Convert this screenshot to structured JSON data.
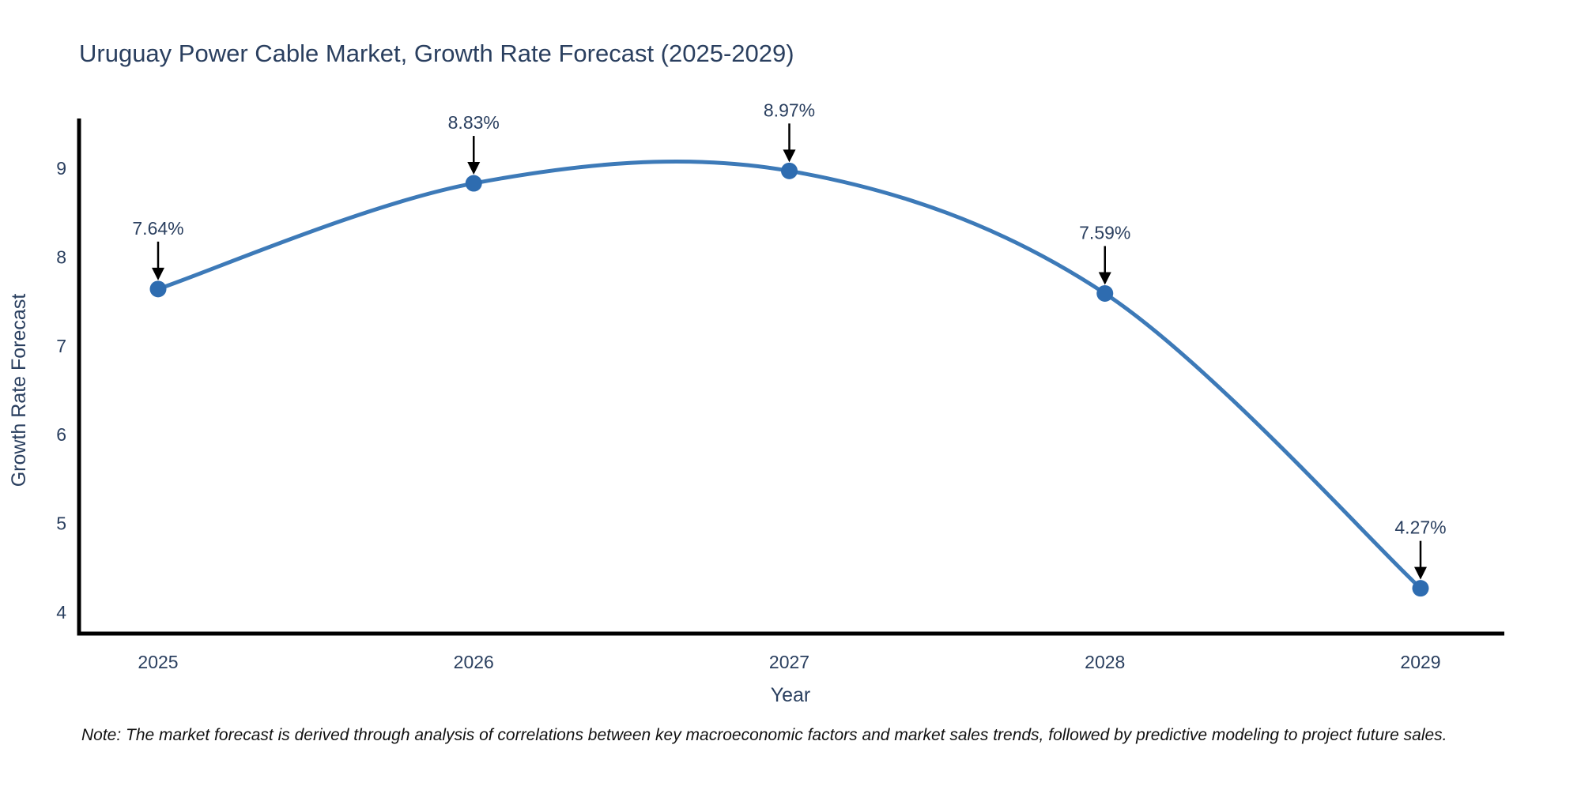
{
  "title": "Uruguay Power Cable Market, Growth Rate Forecast (2025-2029)",
  "footnote": "Note: The market forecast is derived through analysis of correlations between key macroeconomic factors and market sales trends, followed by predictive modeling to project future sales.",
  "chart_data": {
    "type": "line",
    "title": "Uruguay Power Cable Market, Growth Rate Forecast (2025-2029)",
    "xlabel": "Year",
    "ylabel": "Growth Rate Forecast",
    "categories": [
      2025,
      2026,
      2027,
      2028,
      2029
    ],
    "series": [
      {
        "name": "Growth Rate Forecast",
        "values": [
          7.64,
          8.83,
          8.97,
          7.59,
          4.27
        ]
      }
    ],
    "point_labels": [
      "7.64%",
      "8.83%",
      "8.97%",
      "7.59%",
      "4.27%"
    ],
    "yticks": [
      4,
      5,
      6,
      7,
      8,
      9
    ],
    "ylim": [
      3.76,
      9.56
    ],
    "line_shape": "spline",
    "grid": false,
    "legend_position": "none",
    "annotation_style": "black-down-arrow",
    "colors": {
      "line": "#3d7ab8",
      "marker": "#2e6cb0",
      "annotation_arrow": "#000000",
      "axis_line": "#000000",
      "chart_text": "#2a3f5f",
      "note_text": "#111111",
      "background": "#ffffff"
    }
  }
}
